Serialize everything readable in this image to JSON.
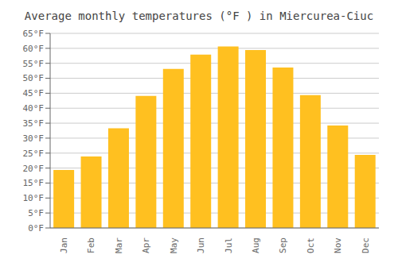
{
  "chart_data": {
    "type": "bar",
    "title": "Average monthly temperatures (°F ) in Miercurea-Ciuc",
    "categories": [
      "Jan",
      "Feb",
      "Mar",
      "Apr",
      "May",
      "Jun",
      "Jul",
      "Aug",
      "Sep",
      "Oct",
      "Nov",
      "Dec"
    ],
    "values": [
      19.4,
      23.9,
      33.3,
      44.1,
      53.1,
      57.9,
      60.6,
      59.4,
      53.6,
      44.4,
      34.2,
      24.4
    ],
    "color": "#FFC020",
    "ylim": [
      0,
      65
    ],
    "yticks": [
      {
        "value": 0,
        "label": "0°F"
      },
      {
        "value": 5,
        "label": "5°F"
      },
      {
        "value": 10,
        "label": "10°F"
      },
      {
        "value": 15,
        "label": "15°F"
      },
      {
        "value": 20,
        "label": "20°F"
      },
      {
        "value": 25,
        "label": "25°F"
      },
      {
        "value": 30,
        "label": "30°F"
      },
      {
        "value": 35,
        "label": "35°F"
      },
      {
        "value": 40,
        "label": "40°F"
      },
      {
        "value": 45,
        "label": "45°F"
      },
      {
        "value": 50,
        "label": "50°F"
      },
      {
        "value": 55,
        "label": "55°F"
      },
      {
        "value": 60,
        "label": "60°F"
      },
      {
        "value": 65,
        "label": "65°F"
      }
    ],
    "grid": true
  }
}
